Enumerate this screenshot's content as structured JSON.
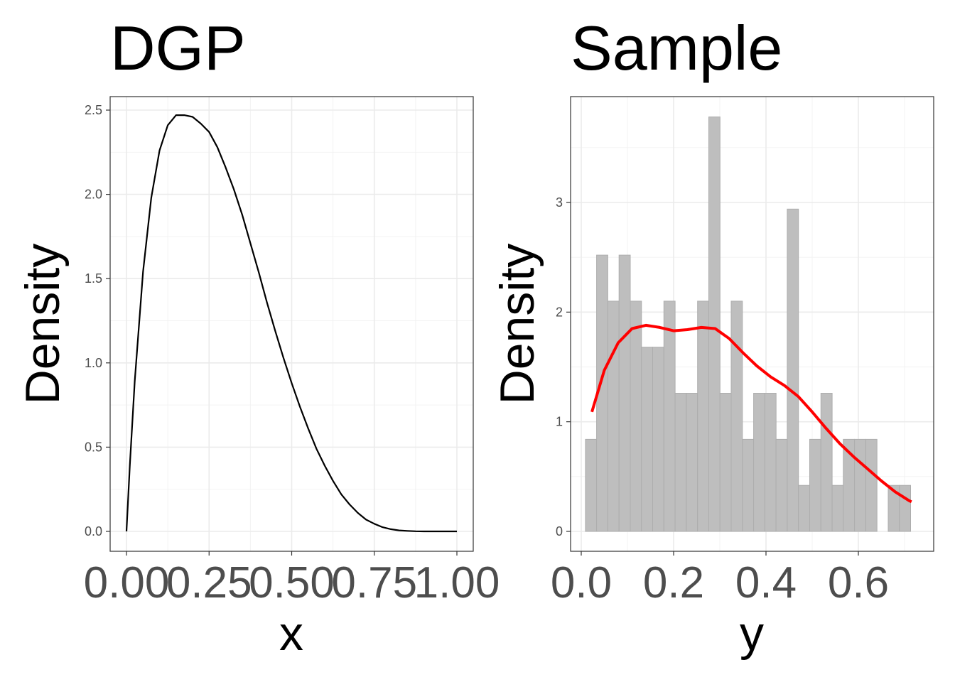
{
  "chart_data": [
    {
      "type": "line",
      "title": "DGP",
      "xlabel": "x",
      "ylabel": "Density",
      "xlim": [
        0,
        1
      ],
      "ylim": [
        0,
        2.5
      ],
      "x_ticks": [
        "0.00",
        "0.25",
        "0.50",
        "0.75",
        "1.00"
      ],
      "y_ticks": [
        "0.0",
        "0.5",
        "1.0",
        "1.5",
        "2.0",
        "2.5"
      ],
      "grid": true,
      "series": [
        {
          "color": "#000000",
          "x": [
            0.0,
            0.01,
            0.025,
            0.05,
            0.075,
            0.1,
            0.125,
            0.15,
            0.175,
            0.2,
            0.225,
            0.25,
            0.275,
            0.3,
            0.325,
            0.35,
            0.375,
            0.4,
            0.425,
            0.45,
            0.475,
            0.5,
            0.525,
            0.55,
            0.575,
            0.6,
            0.625,
            0.65,
            0.675,
            0.7,
            0.725,
            0.75,
            0.775,
            0.8,
            0.825,
            0.85,
            0.875,
            0.9,
            0.925,
            0.95,
            0.975,
            1.0
          ],
          "y": [
            0.0,
            0.39,
            0.89,
            1.54,
            1.98,
            2.26,
            2.41,
            2.47,
            2.47,
            2.46,
            2.42,
            2.37,
            2.28,
            2.16,
            2.03,
            1.88,
            1.71,
            1.54,
            1.36,
            1.19,
            1.03,
            0.88,
            0.74,
            0.61,
            0.49,
            0.39,
            0.3,
            0.22,
            0.16,
            0.11,
            0.07,
            0.045,
            0.025,
            0.013,
            0.006,
            0.003,
            0.001,
            0.0,
            0.0,
            0.0,
            0.0,
            0.0
          ]
        }
      ]
    },
    {
      "type": "bar",
      "title": "Sample",
      "xlabel": "y",
      "ylabel": "Density",
      "xlim": [
        -0.02,
        0.76
      ],
      "ylim": [
        0,
        3.9
      ],
      "x_ticks": [
        "0.0",
        "0.2",
        "0.4",
        "0.6"
      ],
      "y_ticks": [
        "0",
        "1",
        "2",
        "3"
      ],
      "grid": true,
      "bin_start": 0.009,
      "bin_width": 0.02428,
      "histogram": {
        "color": "#bebebe",
        "values": [
          0.84,
          2.52,
          2.1,
          2.52,
          2.1,
          1.68,
          1.68,
          2.1,
          1.26,
          1.26,
          2.1,
          3.78,
          1.26,
          2.1,
          0.84,
          1.26,
          1.26,
          0.84,
          2.94,
          0.42,
          0.84,
          1.26,
          0.42,
          0.84,
          0.84,
          0.84,
          0.0,
          0.42,
          0.42
        ]
      },
      "density_line": {
        "color": "#ff0000",
        "x": [
          0.023,
          0.05,
          0.08,
          0.11,
          0.14,
          0.17,
          0.2,
          0.23,
          0.26,
          0.29,
          0.32,
          0.35,
          0.38,
          0.41,
          0.44,
          0.47,
          0.5,
          0.53,
          0.56,
          0.59,
          0.62,
          0.65,
          0.68,
          0.71,
          0.715
        ],
        "y": [
          1.09,
          1.47,
          1.72,
          1.85,
          1.88,
          1.86,
          1.83,
          1.84,
          1.86,
          1.85,
          1.76,
          1.63,
          1.51,
          1.41,
          1.33,
          1.23,
          1.09,
          0.94,
          0.8,
          0.68,
          0.57,
          0.46,
          0.36,
          0.28,
          0.27
        ]
      }
    }
  ]
}
